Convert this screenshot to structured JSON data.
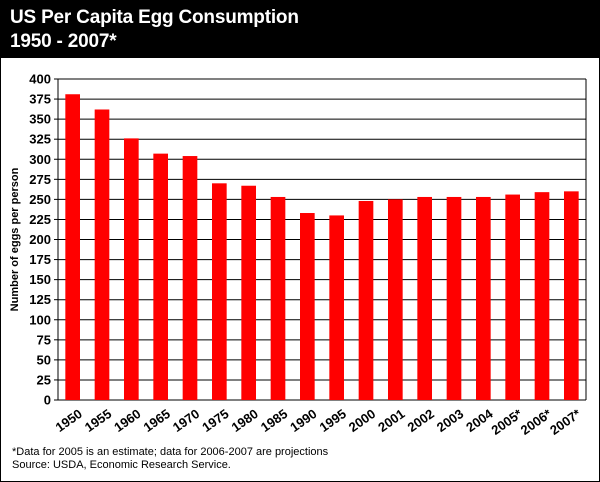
{
  "chart_data": {
    "type": "bar",
    "title": "US Per Capita Egg Consumption",
    "subtitle": "1950 - 2007*",
    "ylabel": "Number of eggs per person",
    "xlabel": "",
    "ylim": [
      0,
      400
    ],
    "yticks": [
      0,
      25,
      50,
      75,
      100,
      125,
      150,
      175,
      200,
      225,
      250,
      275,
      300,
      325,
      350,
      375,
      400
    ],
    "grid": true,
    "categories": [
      "1950",
      "1955",
      "1960",
      "1965",
      "1970",
      "1975",
      "1980",
      "1985",
      "1990",
      "1995",
      "2000",
      "2001",
      "2002",
      "2003",
      "2004",
      "2005*",
      "2006*",
      "2007*"
    ],
    "values": [
      381,
      362,
      326,
      307,
      304,
      270,
      267,
      253,
      233,
      230,
      248,
      250,
      253,
      253,
      253,
      256,
      259,
      260
    ],
    "bar_color": "#ff0000",
    "footnotes": [
      "*Data for 2005 is an estimate; data for 2006-2007 are projections",
      "Source: USDA, Economic Research Service."
    ]
  }
}
